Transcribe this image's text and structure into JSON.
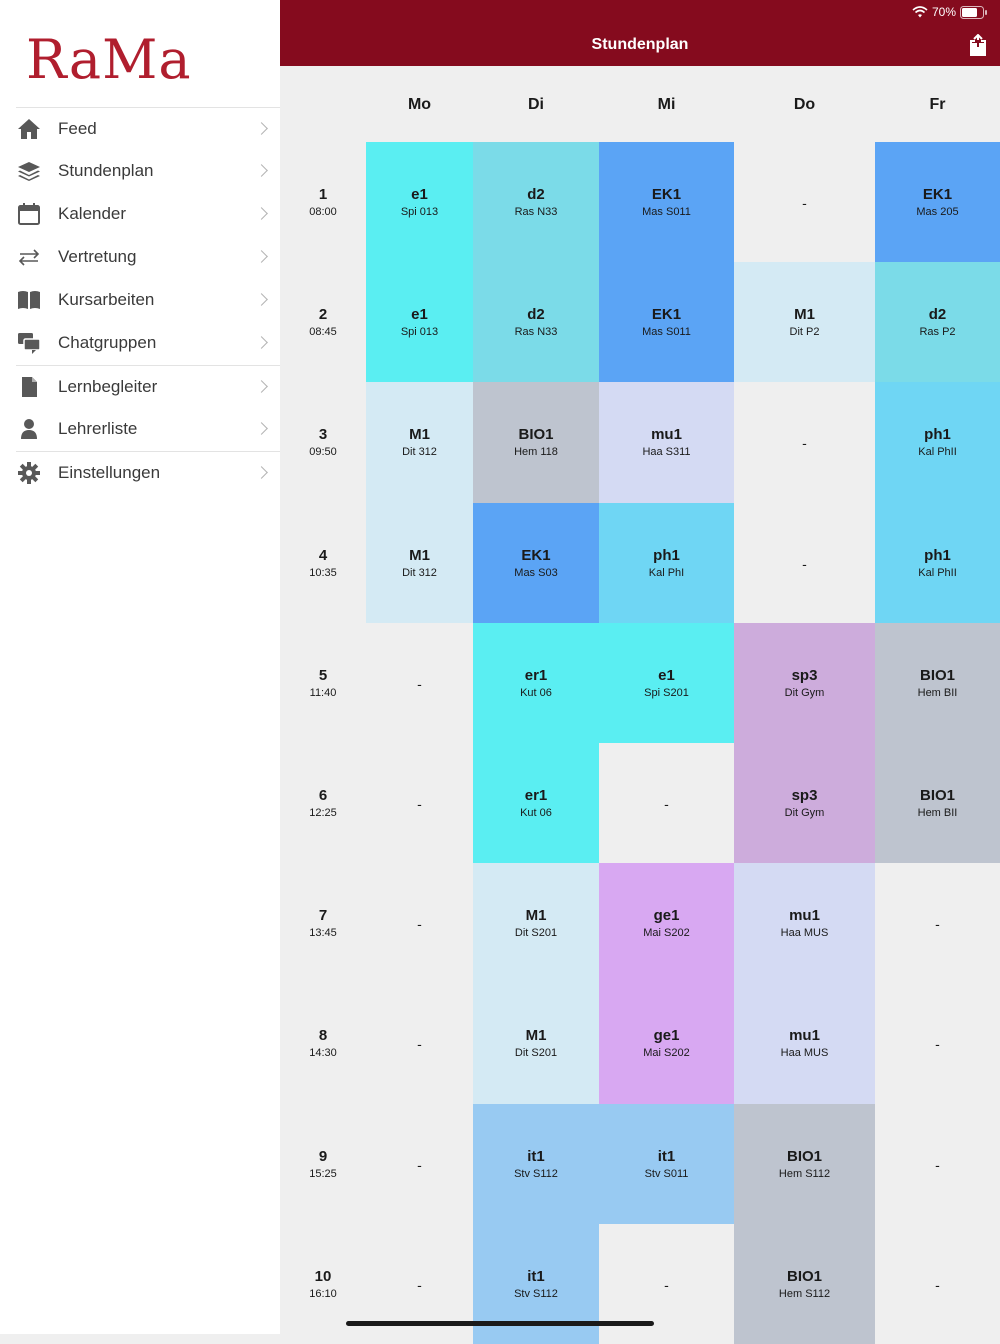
{
  "sidebar": {
    "logo": "RaMa",
    "items": [
      {
        "label": "Feed",
        "icon": "home-icon"
      },
      {
        "label": "Stundenplan",
        "icon": "layers-icon"
      },
      {
        "label": "Kalender",
        "icon": "calendar-icon"
      },
      {
        "label": "Vertretung",
        "icon": "swap-arrows-icon"
      },
      {
        "label": "Kursarbeiten",
        "icon": "book-icon"
      },
      {
        "label": "Chatgruppen",
        "icon": "chat-bubbles-icon"
      },
      {
        "label": "Lernbegleiter",
        "icon": "document-icon"
      },
      {
        "label": "Lehrerliste",
        "icon": "person-icon"
      },
      {
        "label": "Einstellungen",
        "icon": "gear-icon"
      }
    ]
  },
  "status": {
    "battery": "70%"
  },
  "header": {
    "title": "Stundenplan"
  },
  "colors": {
    "header": "#850b1e",
    "logo": "#b01e2e",
    "cyan": "#5aeef2",
    "teal": "#7bdbe8",
    "blue": "#5ba4f5",
    "lightblue": "#d4eaf4",
    "gray": "#bec4cf",
    "lavender": "#d4daf3",
    "sky": "#6fd6f4",
    "purple": "#cdacdc",
    "violet": "#d8a8f2",
    "paleblue": "#98caf2",
    "empty": "#efefef"
  },
  "days": [
    "Mo",
    "Di",
    "Mi",
    "Do",
    "Fr"
  ],
  "periods": [
    {
      "num": "1",
      "time": "08:00"
    },
    {
      "num": "2",
      "time": "08:45"
    },
    {
      "num": "3",
      "time": "09:50"
    },
    {
      "num": "4",
      "time": "10:35"
    },
    {
      "num": "5",
      "time": "11:40"
    },
    {
      "num": "6",
      "time": "12:25"
    },
    {
      "num": "7",
      "time": "13:45"
    },
    {
      "num": "8",
      "time": "14:30"
    },
    {
      "num": "9",
      "time": "15:25"
    },
    {
      "num": "10",
      "time": "16:10"
    }
  ],
  "timetable": [
    [
      {
        "subject": "e1",
        "room": "Spi 013",
        "color": "cyan"
      },
      {
        "subject": "d2",
        "room": "Ras N33",
        "color": "teal"
      },
      {
        "subject": "EK1",
        "room": "Mas S011",
        "color": "blue"
      },
      {
        "subject": "-",
        "color": "empty"
      },
      {
        "subject": "EK1",
        "room": "Mas 205",
        "color": "blue"
      }
    ],
    [
      {
        "subject": "e1",
        "room": "Spi 013",
        "color": "cyan"
      },
      {
        "subject": "d2",
        "room": "Ras N33",
        "color": "teal"
      },
      {
        "subject": "EK1",
        "room": "Mas S011",
        "color": "blue"
      },
      {
        "subject": "M1",
        "room": "Dit P2",
        "color": "lightblue"
      },
      {
        "subject": "d2",
        "room": "Ras P2",
        "color": "teal"
      }
    ],
    [
      {
        "subject": "M1",
        "room": "Dit 312",
        "color": "lightblue"
      },
      {
        "subject": "BIO1",
        "room": "Hem 118",
        "color": "gray"
      },
      {
        "subject": "mu1",
        "room": "Haa S311",
        "color": "lavender"
      },
      {
        "subject": "-",
        "color": "empty"
      },
      {
        "subject": "ph1",
        "room": "Kal PhII",
        "color": "sky"
      }
    ],
    [
      {
        "subject": "M1",
        "room": "Dit 312",
        "color": "lightblue"
      },
      {
        "subject": "EK1",
        "room": "Mas S03",
        "color": "blue"
      },
      {
        "subject": "ph1",
        "room": "Kal PhI",
        "color": "sky"
      },
      {
        "subject": "-",
        "color": "empty"
      },
      {
        "subject": "ph1",
        "room": "Kal PhII",
        "color": "sky"
      }
    ],
    [
      {
        "subject": "-",
        "color": "empty"
      },
      {
        "subject": "er1",
        "room": "Kut 06",
        "color": "cyan"
      },
      {
        "subject": "e1",
        "room": "Spi S201",
        "color": "cyan"
      },
      {
        "subject": "sp3",
        "room": "Dit Gym",
        "color": "purple"
      },
      {
        "subject": "BIO1",
        "room": "Hem BII",
        "color": "gray"
      }
    ],
    [
      {
        "subject": "-",
        "color": "empty"
      },
      {
        "subject": "er1",
        "room": "Kut 06",
        "color": "cyan"
      },
      {
        "subject": "-",
        "color": "empty"
      },
      {
        "subject": "sp3",
        "room": "Dit Gym",
        "color": "purple"
      },
      {
        "subject": "BIO1",
        "room": "Hem BII",
        "color": "gray"
      }
    ],
    [
      {
        "subject": "-",
        "color": "empty"
      },
      {
        "subject": "M1",
        "room": "Dit S201",
        "color": "lightblue"
      },
      {
        "subject": "ge1",
        "room": "Mai S202",
        "color": "violet"
      },
      {
        "subject": "mu1",
        "room": "Haa MUS",
        "color": "lavender"
      },
      {
        "subject": "-",
        "color": "empty"
      }
    ],
    [
      {
        "subject": "-",
        "color": "empty"
      },
      {
        "subject": "M1",
        "room": "Dit S201",
        "color": "lightblue"
      },
      {
        "subject": "ge1",
        "room": "Mai S202",
        "color": "violet"
      },
      {
        "subject": "mu1",
        "room": "Haa MUS",
        "color": "lavender"
      },
      {
        "subject": "-",
        "color": "empty"
      }
    ],
    [
      {
        "subject": "-",
        "color": "empty"
      },
      {
        "subject": "it1",
        "room": "Stv S112",
        "color": "paleblue"
      },
      {
        "subject": "it1",
        "room": "Stv S011",
        "color": "paleblue"
      },
      {
        "subject": "BIO1",
        "room": "Hem S112",
        "color": "gray"
      },
      {
        "subject": "-",
        "color": "empty"
      }
    ],
    [
      {
        "subject": "-",
        "color": "empty"
      },
      {
        "subject": "it1",
        "room": "Stv S112",
        "color": "paleblue"
      },
      {
        "subject": "-",
        "color": "empty"
      },
      {
        "subject": "BIO1",
        "room": "Hem S112",
        "color": "gray"
      },
      {
        "subject": "-",
        "color": "empty"
      }
    ]
  ]
}
